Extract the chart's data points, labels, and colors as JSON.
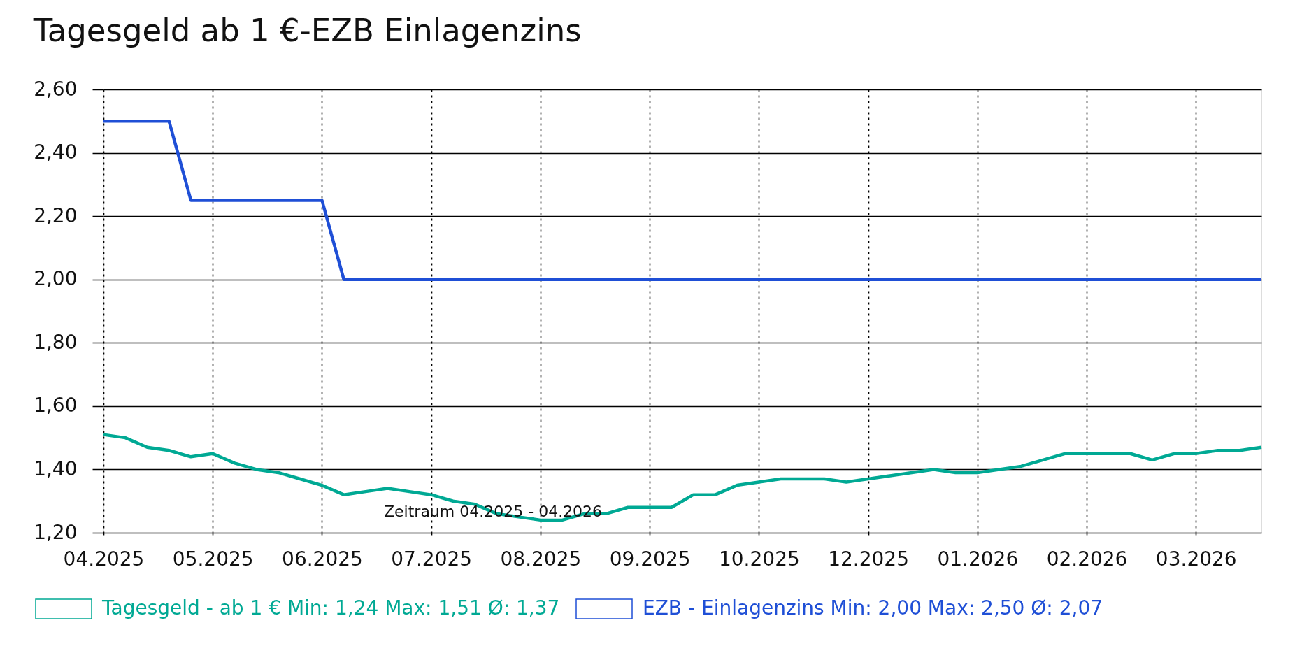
{
  "chart_data": {
    "type": "line",
    "title": "Tagesgeld ab 1 €-EZB Einlagenzins",
    "categories": [
      "04.2025",
      null,
      null,
      null,
      null,
      "05.2025",
      null,
      null,
      null,
      null,
      "06.2025",
      null,
      null,
      null,
      null,
      "07.2025",
      null,
      null,
      null,
      null,
      "08.2025",
      null,
      null,
      null,
      null,
      "09.2025",
      null,
      null,
      null,
      null,
      "10.2025",
      null,
      null,
      null,
      null,
      "12.2025",
      null,
      null,
      null,
      null,
      "01.2026",
      null,
      null,
      null,
      null,
      "02.2026",
      null,
      null,
      null,
      null,
      "03.2026",
      null,
      null,
      null
    ],
    "series": [
      {
        "name": "Tagesgeld - ab 1 € Min: 1,24 Max: 1,51 Ø: 1,37",
        "color": "#00a994",
        "values": [
          1.51,
          1.5,
          1.47,
          1.46,
          1.44,
          1.45,
          1.42,
          1.4,
          1.39,
          1.37,
          1.35,
          1.32,
          1.33,
          1.34,
          1.33,
          1.32,
          1.3,
          1.29,
          1.26,
          1.25,
          1.24,
          1.24,
          1.26,
          1.26,
          1.28,
          1.28,
          1.28,
          1.32,
          1.32,
          1.35,
          1.36,
          1.37,
          1.37,
          1.37,
          1.36,
          1.37,
          1.38,
          1.39,
          1.4,
          1.39,
          1.39,
          1.4,
          1.41,
          1.43,
          1.45,
          1.45,
          1.45,
          1.45,
          1.43,
          1.45,
          1.45,
          1.46,
          1.46,
          1.47
        ]
      },
      {
        "name": "EZB - Einlagenzins Min: 2,00 Max: 2,50 Ø: 2,07",
        "color": "#1f4fd6",
        "values": [
          2.5,
          2.5,
          2.5,
          2.5,
          2.25,
          2.25,
          2.25,
          2.25,
          2.25,
          2.25,
          2.25,
          2.0,
          2.0,
          2.0,
          2.0,
          2.0,
          2.0,
          2.0,
          2.0,
          2.0,
          2.0,
          2.0,
          2.0,
          2.0,
          2.0,
          2.0,
          2.0,
          2.0,
          2.0,
          2.0,
          2.0,
          2.0,
          2.0,
          2.0,
          2.0,
          2.0,
          2.0,
          2.0,
          2.0,
          2.0,
          2.0,
          2.0,
          2.0,
          2.0,
          2.0,
          2.0,
          2.0,
          2.0,
          2.0,
          2.0,
          2.0,
          2.0,
          2.0,
          2.0
        ]
      }
    ],
    "ylim": [
      1.2,
      2.6
    ],
    "yticks": [
      {
        "value": 1.2,
        "label": "1,20"
      },
      {
        "value": 1.4,
        "label": "1,40"
      },
      {
        "value": 1.6,
        "label": "1,60"
      },
      {
        "value": 1.8,
        "label": "1,80"
      },
      {
        "value": 2.0,
        "label": "2,00"
      },
      {
        "value": 2.2,
        "label": "2,20"
      },
      {
        "value": 2.4,
        "label": "2,40"
      },
      {
        "value": 2.6,
        "label": "2,60"
      }
    ],
    "grid": true,
    "legend": "bottom",
    "annotations": [
      "Zeitraum 04.2025 - 04.2026"
    ]
  }
}
